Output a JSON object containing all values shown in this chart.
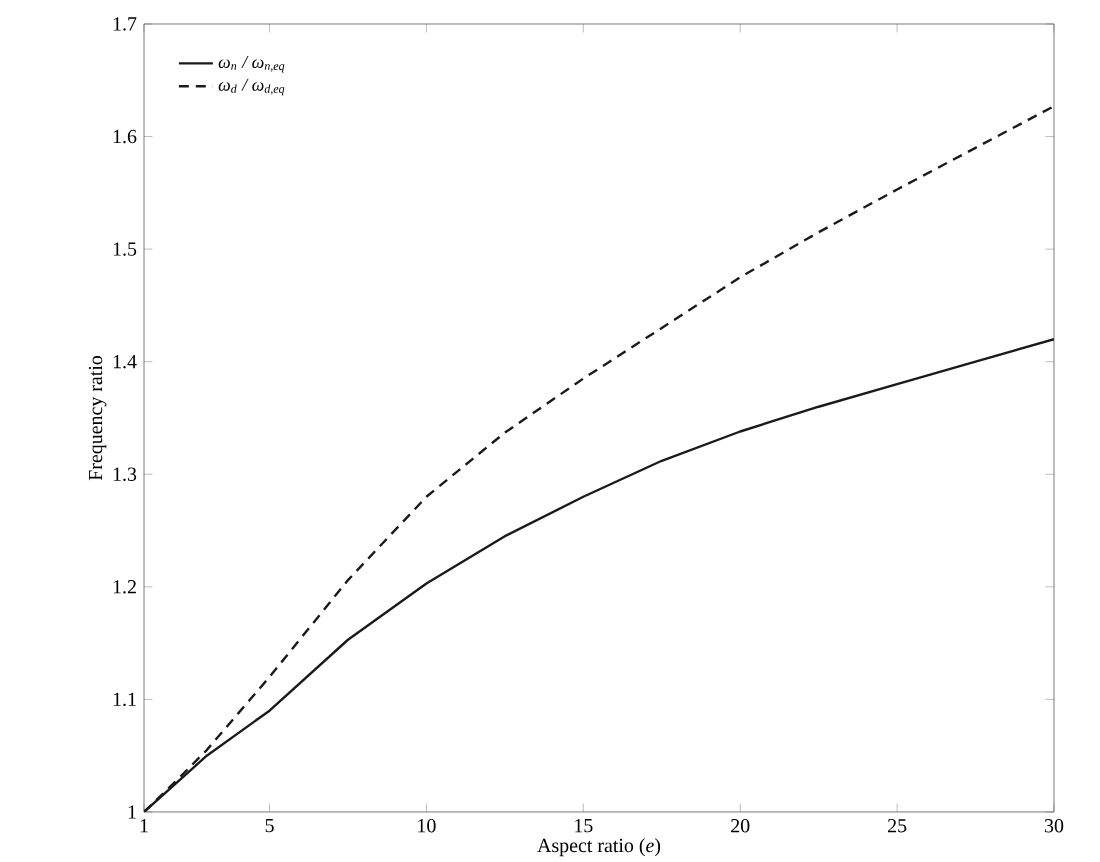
{
  "chart_data": {
    "type": "line",
    "xlabel": "Aspect ratio (*e*)",
    "ylabel": "Frequency ratio",
    "x": [
      1,
      2,
      3,
      5,
      7.5,
      10,
      12.5,
      15,
      17.5,
      20,
      22.5,
      25,
      27.5,
      30
    ],
    "series": [
      {
        "name": "ω$_{n}$ / ω$_{n,eq}$",
        "color": "#1a1a1a",
        "line_style": "solid",
        "values": [
          1.0,
          1.025,
          1.05,
          1.09,
          1.153,
          1.203,
          1.245,
          1.28,
          1.312,
          1.338,
          1.36,
          1.38,
          1.4,
          1.42
        ]
      },
      {
        "name": "ω$_{d}$ / ω$_{d,eq}$",
        "color": "#1a1a1a",
        "line_style": "dashed",
        "values": [
          1.0,
          1.027,
          1.055,
          1.12,
          1.206,
          1.28,
          1.337,
          1.385,
          1.43,
          1.475,
          1.515,
          1.553,
          1.59,
          1.627
        ]
      }
    ],
    "xlim": [
      1,
      30
    ],
    "ylim": [
      1,
      1.7
    ],
    "xticks": [
      1,
      5,
      10,
      15,
      20,
      25,
      30
    ],
    "yticks": [
      1,
      1.1,
      1.2,
      1.3,
      1.4,
      1.5,
      1.6,
      1.7
    ],
    "legend": "top left",
    "grid": false
  }
}
